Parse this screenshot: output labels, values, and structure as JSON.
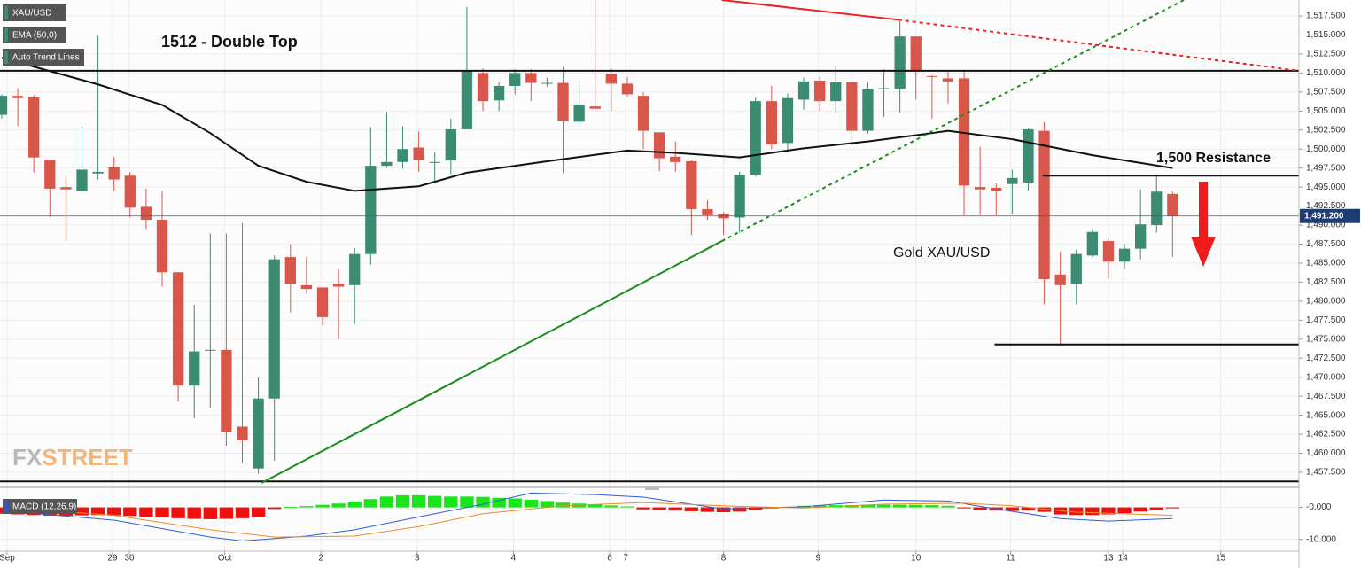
{
  "chart_data": [
    {
      "type": "candlestick",
      "name": "XAU/USD",
      "x": [
        0,
        1,
        2,
        3,
        4,
        5,
        6,
        7,
        8,
        9,
        10,
        11,
        12,
        13,
        14,
        15,
        16,
        17,
        18,
        19,
        20,
        21,
        22,
        23,
        24,
        25,
        26,
        27,
        28,
        29,
        30,
        31,
        32,
        33,
        34,
        35,
        36,
        37,
        38,
        39,
        40,
        41,
        42,
        43,
        44,
        45,
        46,
        47,
        48,
        49,
        50,
        51,
        52,
        53,
        54,
        55,
        56,
        57,
        58,
        59,
        60,
        61,
        62,
        63,
        64,
        65,
        66,
        67,
        68,
        69,
        70,
        71,
        72,
        73
      ],
      "open": [
        1504.5,
        1507,
        1506.8,
        1498.6,
        1495,
        1494.5,
        1496.8,
        1497.6,
        1496.5,
        1492.4,
        1490.7,
        1483.8,
        1468.9,
        1473.6,
        1473.6,
        1463.5,
        1458,
        1467.2,
        1485.8,
        1482.1,
        1481.8,
        1482.3,
        1482.1,
        1486.2,
        1497.8,
        1498.3,
        1500.2,
        1498.3,
        1498.5,
        1502.6,
        1510,
        1506.4,
        1508.3,
        1510,
        1508.7,
        1508.7,
        1503.6,
        1505.6,
        1509.9,
        1508.6,
        1507,
        1502.2,
        1499,
        1498.4,
        1492.1,
        1491.5,
        1491,
        1496.6,
        1506.3,
        1500.8,
        1506.5,
        1509,
        1506.3,
        1508.8,
        1502.4,
        1507.9,
        1507.9,
        1514.8,
        1509.6,
        1509.3,
        1509.3,
        1495,
        1494.9,
        1495.4,
        1495.6,
        1502.4,
        1483.5,
        1482.3,
        1486,
        1487.9,
        1485.2,
        1486.9,
        1490,
        1494.1
      ],
      "high": [
        1507.2,
        1508,
        1507.1,
        1498.6,
        1496.6,
        1502.9,
        1514.9,
        1499,
        1497,
        1494.8,
        1494.4,
        1483.8,
        1479.5,
        1488.9,
        1488.9,
        1490.3,
        1470,
        1486,
        1487.5,
        1485.8,
        1481.8,
        1484.2,
        1487,
        1502.9,
        1504.9,
        1503,
        1502.3,
        1499.6,
        1504,
        1518.7,
        1510.6,
        1508.8,
        1510.5,
        1510.5,
        1509.4,
        1510.8,
        1509,
        1519.6,
        1510.6,
        1509.5,
        1507.5,
        1502.2,
        1501,
        1498.6,
        1493.3,
        1491.7,
        1497,
        1506.8,
        1508.3,
        1507.3,
        1509.4,
        1509.5,
        1511,
        1508.8,
        1508.8,
        1510.5,
        1516.8,
        1514.8,
        1509.7,
        1510.4,
        1510.4,
        1500.3,
        1495.5,
        1497.3,
        1502.8,
        1503.5,
        1486.5,
        1486.8,
        1489.5,
        1488.2,
        1487.5,
        1494.7,
        1496.6,
        1494.4
      ],
      "low": [
        1504,
        1503,
        1496.9,
        1491.1,
        1487.9,
        1494.4,
        1496,
        1494.5,
        1491,
        1489.5,
        1481.9,
        1466.8,
        1464.6,
        1466,
        1461,
        1458.7,
        1457.3,
        1459,
        1478.5,
        1481,
        1476.8,
        1475,
        1477,
        1484.8,
        1497.5,
        1497.4,
        1497,
        1495.5,
        1496.7,
        1502.6,
        1505,
        1505,
        1507.2,
        1506.3,
        1508.2,
        1496.8,
        1503,
        1505,
        1505,
        1506.9,
        1500,
        1497.1,
        1497,
        1488.7,
        1490.7,
        1488.7,
        1489,
        1496.4,
        1500,
        1499.6,
        1505.2,
        1505,
        1504.8,
        1500.5,
        1502,
        1504.2,
        1504.8,
        1506.5,
        1504,
        1506,
        1491.3,
        1491.3,
        1491.3,
        1491.5,
        1494.5,
        1479.6,
        1474.2,
        1479.6,
        1485.8,
        1483,
        1484.2,
        1485.5,
        1489,
        1485.8
      ],
      "close": [
        1507,
        1506.7,
        1498.9,
        1494.8,
        1494.7,
        1497.3,
        1497,
        1496,
        1492.3,
        1490.7,
        1483.8,
        1468.9,
        1473.4,
        1473.6,
        1462.8,
        1461.7,
        1467.2,
        1485.5,
        1482.3,
        1481.6,
        1477.9,
        1481.9,
        1486.2,
        1497.8,
        1498.3,
        1500,
        1498.6,
        1498.3,
        1502.6,
        1510.3,
        1506.3,
        1508.3,
        1510,
        1508.7,
        1508.7,
        1503.7,
        1505.8,
        1505.3,
        1508.6,
        1507.2,
        1502.4,
        1498.8,
        1498.3,
        1492.1,
        1491.3,
        1490.9,
        1496.6,
        1506.3,
        1500.6,
        1506.7,
        1508.9,
        1506.3,
        1508.8,
        1502.4,
        1507.9,
        1508,
        1514.8,
        1510.2,
        1509.5,
        1508.9,
        1495.2,
        1494.7,
        1494.5,
        1496.2,
        1502.6,
        1482.9,
        1482.1,
        1486.2,
        1489.1,
        1485.2,
        1486.9,
        1490.1,
        1494.4,
        1491.2
      ],
      "up_color": "#3c8c73",
      "down_color": "#d9574a",
      "ema": {
        "name": "EMA (50,0)",
        "color": "#111111",
        "x": [
          0,
          6,
          10,
          13,
          16,
          19,
          22,
          26,
          29,
          34,
          39,
          42,
          46,
          50,
          54,
          58,
          59,
          63,
          68,
          73
        ],
        "values": [
          1512,
          1508.5,
          1505.8,
          1502.1,
          1497.8,
          1495.7,
          1494.5,
          1495.1,
          1496.9,
          1498.4,
          1499.8,
          1499.5,
          1498.9,
          1500.1,
          1501,
          1502.1,
          1502.4,
          1501.3,
          1499.2,
          1497.5
        ]
      },
      "trend_lines": {
        "name": "Auto Trend Lines",
        "lines": [
          {
            "x": [
              -0.11,
              80.88
            ],
            "y": [
              1510.3,
              1510.3
            ],
            "color": "#111111",
            "dashed": false
          },
          {
            "x": [
              -0.11,
              80.88
            ],
            "y": [
              1456.3,
              1456.3
            ],
            "color": "#111111",
            "dashed": false
          },
          {
            "x": [
              16.2,
              44.9
            ],
            "y": [
              1456.1,
              1487.9
            ],
            "color": "#1c8c1c",
            "dashed": false
          },
          {
            "x": [
              44.9,
              73.7
            ],
            "y": [
              1487.9,
              1519.6
            ],
            "color": "#1c8c1c",
            "dashed": true
          },
          {
            "x": [
              44.9,
              55.9
            ],
            "y": [
              1519.6,
              1517
            ],
            "color": "#ee2020",
            "dashed": false
          },
          {
            "x": [
              55.9,
              80.88
            ],
            "y": [
              1517,
              1510.3
            ],
            "color": "#ee2020",
            "dashed": true
          },
          {
            "x": [
              64.9,
              80.88
            ],
            "y": [
              1496.5,
              1496.5
            ],
            "color": "#111111",
            "dashed": false
          },
          {
            "x": [
              61.9,
              80.88
            ],
            "y": [
              1474.3,
              1474.3
            ],
            "color": "#111111",
            "dashed": false
          }
        ]
      },
      "last_price": {
        "value": 1491.2,
        "label": "1,491.200"
      },
      "annotations": [
        "1512 - Double Top",
        "1,500 Resistance",
        "Gold XAU/USD"
      ],
      "watermark": [
        "FX",
        "STREET"
      ],
      "xlim": [
        -0.11,
        80.88
      ],
      "xticks": [
        {
          "value": 0.33,
          "label": "Sep"
        },
        {
          "value": 6.9,
          "label": "29"
        },
        {
          "value": 7.96,
          "label": "30"
        },
        {
          "value": 13.9,
          "label": "Oct"
        },
        {
          "value": 19.9,
          "label": "2"
        },
        {
          "value": 25.9,
          "label": "3"
        },
        {
          "value": 31.9,
          "label": "4"
        },
        {
          "value": 37.9,
          "label": "6"
        },
        {
          "value": 38.9,
          "label": "7"
        },
        {
          "value": 45,
          "label": "8"
        },
        {
          "value": 50.9,
          "label": "9"
        },
        {
          "value": 57,
          "label": "10"
        },
        {
          "value": 62.9,
          "label": "11"
        },
        {
          "value": 69,
          "label": "13"
        },
        {
          "value": 69.9,
          "label": "14"
        },
        {
          "value": 76,
          "label": "15"
        }
      ],
      "ylim": [
        1455.75,
        1519.6
      ],
      "yticks": [
        {
          "value": 1457.5,
          "label": "1,457.500"
        },
        {
          "value": 1460,
          "label": "1,460.000"
        },
        {
          "value": 1462.5,
          "label": "1,462.500"
        },
        {
          "value": 1465,
          "label": "1,465.000"
        },
        {
          "value": 1467.5,
          "label": "1,467.500"
        },
        {
          "value": 1470,
          "label": "1,470.000"
        },
        {
          "value": 1472.5,
          "label": "1,472.500"
        },
        {
          "value": 1475,
          "label": "1,475.000"
        },
        {
          "value": 1477.5,
          "label": "1,477.500"
        },
        {
          "value": 1480,
          "label": "1,480.000"
        },
        {
          "value": 1482.5,
          "label": "1,482.500"
        },
        {
          "value": 1485,
          "label": "1,485.000"
        },
        {
          "value": 1487.5,
          "label": "1,487.500"
        },
        {
          "value": 1490,
          "label": "1,490.000"
        },
        {
          "value": 1492.5,
          "label": "1,492.500"
        },
        {
          "value": 1495,
          "label": "1,495.000"
        },
        {
          "value": 1497.5,
          "label": "1,497.500"
        },
        {
          "value": 1500,
          "label": "1,500.000"
        },
        {
          "value": 1502.5,
          "label": "1,502.500"
        },
        {
          "value": 1505,
          "label": "1,505.000"
        },
        {
          "value": 1507.5,
          "label": "1,507.500"
        },
        {
          "value": 1510,
          "label": "1,510.000"
        },
        {
          "value": 1512.5,
          "label": "1,512.500"
        },
        {
          "value": 1515,
          "label": "1,515.000"
        },
        {
          "value": 1517.5,
          "label": "1,517.500"
        }
      ],
      "grid": true
    },
    {
      "type": "macd",
      "name": "MACD (12,26,9)",
      "x": [
        0,
        1,
        2,
        3,
        4,
        5,
        6,
        7,
        8,
        9,
        10,
        11,
        12,
        13,
        14,
        15,
        16,
        17,
        18,
        19,
        20,
        21,
        22,
        23,
        24,
        25,
        26,
        27,
        28,
        29,
        30,
        31,
        32,
        33,
        34,
        35,
        36,
        37,
        38,
        39,
        40,
        41,
        42,
        43,
        44,
        45,
        46,
        47,
        48,
        49,
        50,
        51,
        52,
        53,
        54,
        55,
        56,
        57,
        58,
        59,
        60,
        61,
        62,
        63,
        64,
        65,
        66,
        67,
        68,
        69,
        70,
        71,
        72,
        73
      ],
      "histogram": [
        -2,
        -2.2,
        -2.4,
        -2.6,
        -2.6,
        -2.5,
        -2.4,
        -2.5,
        -2.7,
        -3,
        -3.2,
        -3.4,
        -3.6,
        -3.7,
        -3.6,
        -3.4,
        -3,
        -0.5,
        0.2,
        0.4,
        0.8,
        1.2,
        1.8,
        2.6,
        3.4,
        3.8,
        3.8,
        3.6,
        3.4,
        3.4,
        3.3,
        3,
        2.8,
        2.4,
        2,
        1.5,
        1.2,
        1,
        0.6,
        0.3,
        -0.6,
        -0.8,
        -1,
        -1.2,
        -1.4,
        -1.5,
        -1.3,
        -0.8,
        -0.3,
        0.2,
        0.5,
        0.6,
        0.7,
        0.7,
        0.8,
        0.8,
        0.8,
        0.8,
        0.7,
        0.5,
        -0.3,
        -0.8,
        -1,
        -1.1,
        -1,
        -1.4,
        -2.2,
        -2.4,
        -2.4,
        -2.2,
        -1.8,
        -1.3,
        -0.8,
        -0.3
      ],
      "up_color": "#19e619",
      "down_color": "#f01010",
      "lines": [
        {
          "color": "#2e5fd6",
          "x": [
            0,
            7,
            13,
            15,
            19,
            22,
            26,
            30,
            33,
            37,
            40,
            45,
            50,
            55,
            59,
            62,
            66,
            69,
            73
          ],
          "values": [
            -1,
            -4,
            -9.3,
            -10.5,
            -9,
            -7,
            -3,
            1,
            4.5,
            4,
            3.2,
            -0.5,
            0.2,
            2.3,
            2,
            -0.5,
            -3.5,
            -4.3,
            -3.5
          ]
        },
        {
          "color": "#f08a24",
          "x": [
            0,
            7,
            13,
            17,
            22,
            26,
            30,
            35,
            40,
            46,
            50,
            55,
            60,
            63,
            67,
            73
          ],
          "values": [
            0,
            -2.5,
            -7,
            -9.3,
            -9,
            -6,
            -2,
            0.5,
            1.5,
            0.3,
            -0.2,
            1,
            1.3,
            0.5,
            -1.5,
            -2.5
          ]
        }
      ],
      "xlim": [
        -0.11,
        80.88
      ],
      "ylim": [
        -13.7,
        5.43
      ],
      "yticks": [
        {
          "value": 0,
          "label": "-0.000"
        },
        {
          "value": -10,
          "label": "-10.000"
        }
      ]
    }
  ]
}
